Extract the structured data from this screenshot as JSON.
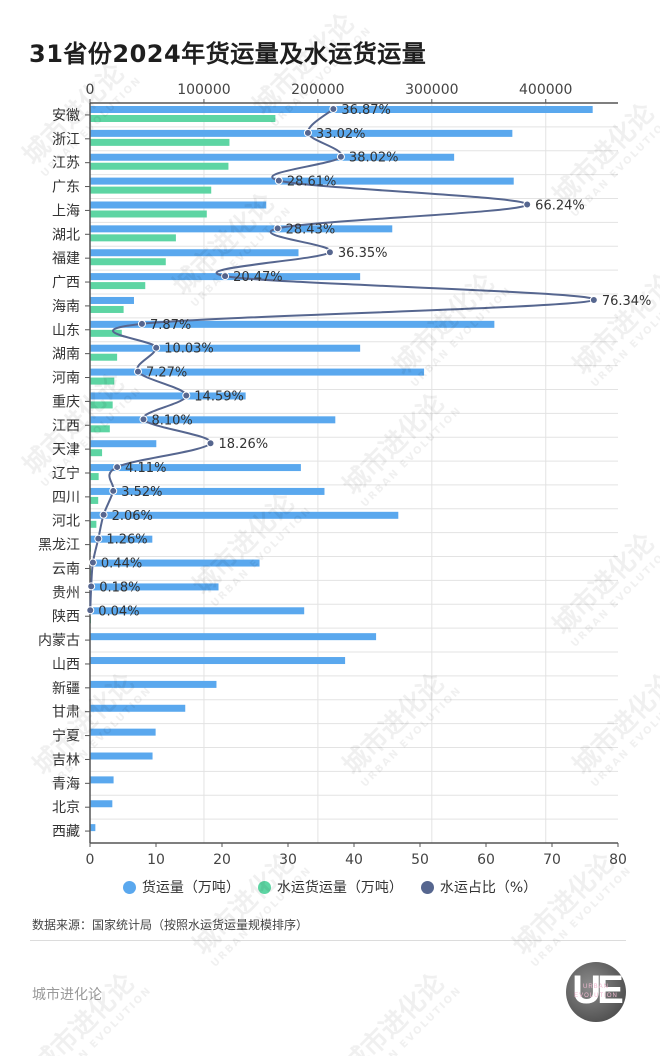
{
  "title": "31省份2024年货运量及水运货运量",
  "colors": {
    "total": "#5aa8ee",
    "water": "#5dd5a3",
    "ratio": "#56668f",
    "grid": "#e3e3e3",
    "axis": "#555555"
  },
  "legend": [
    {
      "label": "货运量（万吨）",
      "color": "#5aa8ee"
    },
    {
      "label": "水运货运量（万吨）",
      "color": "#5dd5a3"
    },
    {
      "label": "水运占比（%）",
      "color": "#56668f"
    }
  ],
  "source": "数据来源：国家统计局（按照水运货运量规模排序）",
  "brand": "城市进化论",
  "logo": {
    "main": "UE",
    "line1": "URBAN",
    "line2": "EVOLUTION"
  },
  "watermark": {
    "cn": "城市进化论",
    "en": "URBAN EVOLUTION"
  },
  "chart_data": {
    "type": "bar",
    "title": "31省份2024年货运量及水运货运量",
    "orientation": "horizontal",
    "categories": [
      "安徽",
      "浙江",
      "江苏",
      "广东",
      "上海",
      "湖北",
      "福建",
      "广西",
      "海南",
      "山东",
      "湖南",
      "河南",
      "重庆",
      "江西",
      "天津",
      "辽宁",
      "四川",
      "河北",
      "黑龙江",
      "云南",
      "贵州",
      "陕西",
      "内蒙古",
      "山西",
      "新疆",
      "甘肃",
      "宁夏",
      "吉林",
      "青海",
      "北京",
      "西藏"
    ],
    "top_axis": {
      "label": "万吨",
      "ticks": [
        0,
        100000,
        200000,
        300000,
        400000
      ],
      "range": [
        0,
        460000
      ]
    },
    "bottom_axis": {
      "label": "%",
      "ticks": [
        0,
        10,
        20,
        30,
        40,
        50,
        60,
        70,
        80
      ],
      "range": [
        0,
        80
      ]
    },
    "series": [
      {
        "name": "货运量（万吨）",
        "type": "bar",
        "axis": "top",
        "values": [
          441200,
          370700,
          319600,
          371900,
          154700,
          265300,
          183000,
          237100,
          38600,
          354900,
          237100,
          293200,
          136600,
          215300,
          58200,
          185100,
          205800,
          270600,
          54700,
          148800,
          112800,
          188000,
          251100,
          223900,
          111000,
          83600,
          57600,
          54900,
          20700,
          19600,
          4700
        ]
      },
      {
        "name": "水运货运量（万吨）",
        "type": "bar",
        "axis": "top",
        "values": [
          162700,
          122400,
          121500,
          106400,
          102500,
          75400,
          66500,
          48500,
          29500,
          27900,
          23800,
          21300,
          19900,
          17400,
          10600,
          7600,
          7200,
          5600,
          690,
          650,
          200,
          75,
          0,
          0,
          0,
          0,
          0,
          0,
          0,
          0,
          0
        ]
      },
      {
        "name": "水运占比（%）",
        "type": "line",
        "axis": "bottom",
        "values": [
          36.87,
          33.02,
          38.02,
          28.61,
          66.24,
          28.43,
          36.35,
          20.47,
          76.34,
          7.87,
          10.03,
          7.27,
          14.59,
          8.1,
          18.26,
          4.11,
          3.52,
          2.06,
          1.26,
          0.44,
          0.18,
          0.04,
          null,
          null,
          null,
          null,
          null,
          null,
          null,
          null,
          null
        ],
        "labels": [
          "36.87%",
          "33.02%",
          "38.02%",
          "28.61%",
          "66.24%",
          "28.43%",
          "36.35%",
          "20.47%",
          "76.34%",
          "7.87%",
          "10.03%",
          "7.27%",
          "14.59%",
          "8.10%",
          "18.26%",
          "4.11%",
          "3.52%",
          "2.06%",
          "1.26%",
          "0.44%",
          "0.18%",
          "0.04%"
        ]
      }
    ],
    "grid": true,
    "legend_position": "bottom"
  }
}
